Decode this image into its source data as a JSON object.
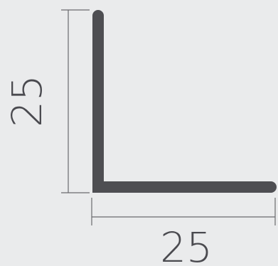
{
  "diagram": {
    "type": "angle-profile-cross-section",
    "colors": {
      "background": "#eaebec",
      "profile": "#4e4e52",
      "dimension_line": "#6a6a6e",
      "dimension_text": "#4a4a4f"
    },
    "dimensions": {
      "height_label": "25",
      "width_label": "25"
    }
  }
}
